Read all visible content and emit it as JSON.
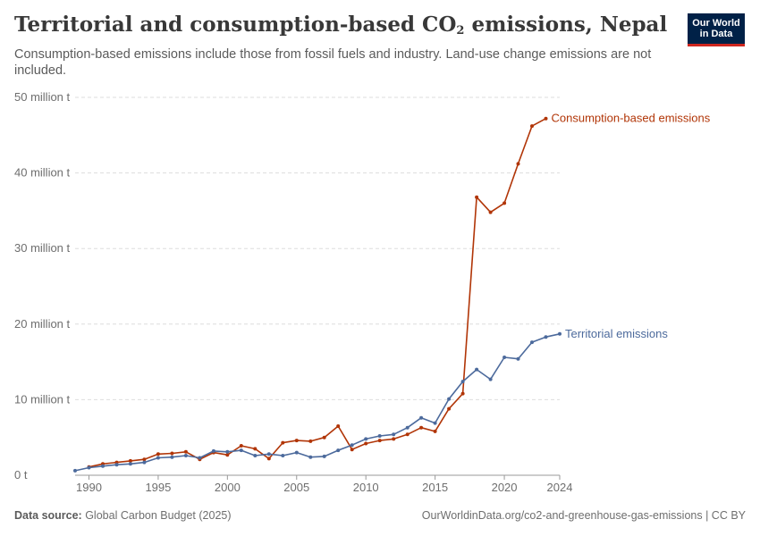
{
  "header": {
    "title_main": "Territorial and consumption-based CO",
    "title_sub": "2",
    "title_tail": " emissions, Nepal",
    "subtitle": "Consumption-based emissions include those from fossil fuels and industry. Land-use change emissions are not included."
  },
  "logo": {
    "line1": "Our World",
    "line2": "in Data",
    "bg": "#002147",
    "accent": "#ce261e"
  },
  "footer": {
    "source_label": "Data source:",
    "source_text": " Global Carbon Budget (2025)",
    "url_text": "OurWorldinData.org/co2-and-greenhouse-gas-emissions | CC BY"
  },
  "chart_data": {
    "type": "line",
    "xlim": [
      1989,
      2024
    ],
    "ylim": [
      0,
      50
    ],
    "x_ticks": [
      1990,
      1995,
      2000,
      2005,
      2010,
      2015,
      2020,
      2024
    ],
    "y_ticks": [
      {
        "value": 0,
        "label": "0 t"
      },
      {
        "value": 10,
        "label": "10 million t"
      },
      {
        "value": 20,
        "label": "20 million t"
      },
      {
        "value": 30,
        "label": "30 million t"
      },
      {
        "value": 40,
        "label": "40 million t"
      },
      {
        "value": 50,
        "label": "50 million t"
      }
    ],
    "grid": "horizontal dashed",
    "series": [
      {
        "name": "Consumption-based emissions",
        "color": "#b13507",
        "x": [
          1990,
          1991,
          1992,
          1993,
          1994,
          1995,
          1996,
          1997,
          1998,
          1999,
          2000,
          2001,
          2002,
          2003,
          2004,
          2005,
          2006,
          2007,
          2008,
          2009,
          2010,
          2011,
          2012,
          2013,
          2014,
          2015,
          2016,
          2017,
          2018,
          2019,
          2020,
          2021,
          2022,
          2023
        ],
        "y": [
          1.1,
          1.5,
          1.7,
          1.9,
          2.1,
          2.8,
          2.9,
          3.1,
          2.1,
          3.0,
          2.7,
          3.9,
          3.5,
          2.2,
          4.3,
          4.6,
          4.5,
          5.0,
          6.5,
          3.4,
          4.2,
          4.6,
          4.8,
          5.4,
          6.3,
          5.8,
          8.8,
          10.8,
          36.8,
          34.8,
          36.0,
          41.2,
          46.2,
          47.2
        ]
      },
      {
        "name": "Territorial emissions",
        "color": "#4c6a9c",
        "x": [
          1989,
          1990,
          1991,
          1992,
          1993,
          1994,
          1995,
          1996,
          1997,
          1998,
          1999,
          2000,
          2001,
          2002,
          2003,
          2004,
          2005,
          2006,
          2007,
          2008,
          2009,
          2010,
          2011,
          2012,
          2013,
          2014,
          2015,
          2016,
          2017,
          2018,
          2019,
          2020,
          2021,
          2022,
          2023,
          2024
        ],
        "y": [
          0.6,
          1.0,
          1.2,
          1.4,
          1.5,
          1.7,
          2.3,
          2.4,
          2.6,
          2.3,
          3.2,
          3.1,
          3.3,
          2.6,
          2.8,
          2.6,
          3.0,
          2.4,
          2.5,
          3.3,
          4.0,
          4.8,
          5.2,
          5.4,
          6.3,
          7.6,
          6.9,
          10.1,
          12.4,
          14.0,
          12.7,
          15.6,
          15.4,
          17.6,
          18.3,
          18.7
        ]
      }
    ]
  }
}
